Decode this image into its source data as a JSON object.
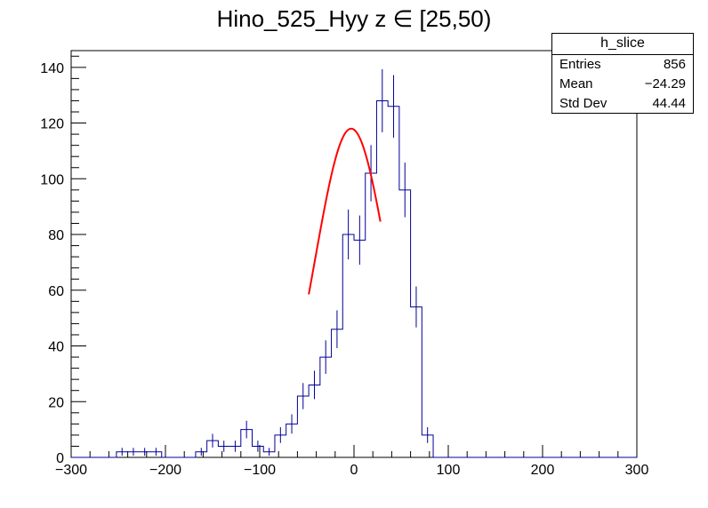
{
  "chart_data": {
    "type": "histogram",
    "title": "Hino_525_Hyy z  ∈ [25,50)",
    "xlim": [
      -300,
      300
    ],
    "ylim": [
      0,
      146
    ],
    "x_ticks": [
      -300,
      -200,
      -100,
      0,
      100,
      200,
      300
    ],
    "x_tick_labels": [
      "−300",
      "−200",
      "−100",
      "0",
      "100",
      "200",
      "300"
    ],
    "y_ticks": [
      0,
      20,
      40,
      60,
      80,
      100,
      120,
      140
    ],
    "y_tick_labels": [
      "0",
      "20",
      "40",
      "60",
      "80",
      "100",
      "120",
      "140"
    ],
    "bin_width": 12,
    "bin_edges_start": -300,
    "bin_contents": [
      0,
      0,
      0,
      0,
      2,
      2,
      2,
      2,
      0,
      0,
      0,
      2,
      6,
      4,
      4,
      10,
      4,
      2,
      8,
      12,
      22,
      26,
      36,
      46,
      80,
      78,
      102,
      128,
      126,
      96,
      54,
      8,
      0,
      0,
      0,
      0,
      0,
      0,
      0,
      0,
      0,
      0,
      0,
      0,
      0,
      0,
      0,
      0,
      0,
      0
    ],
    "histogram_color": "#000099",
    "fit": {
      "function": "gaussian",
      "color": "#ff0000",
      "range": [
        -48,
        28
      ],
      "constant": 118,
      "mean": -3,
      "sigma": 38
    },
    "stats_box": {
      "title": "h_slice",
      "entries_label": "Entries",
      "entries_value": "856",
      "mean_label": "Mean",
      "mean_value": "−24.29",
      "stddev_label": "Std Dev",
      "stddev_value": "44.44"
    }
  }
}
